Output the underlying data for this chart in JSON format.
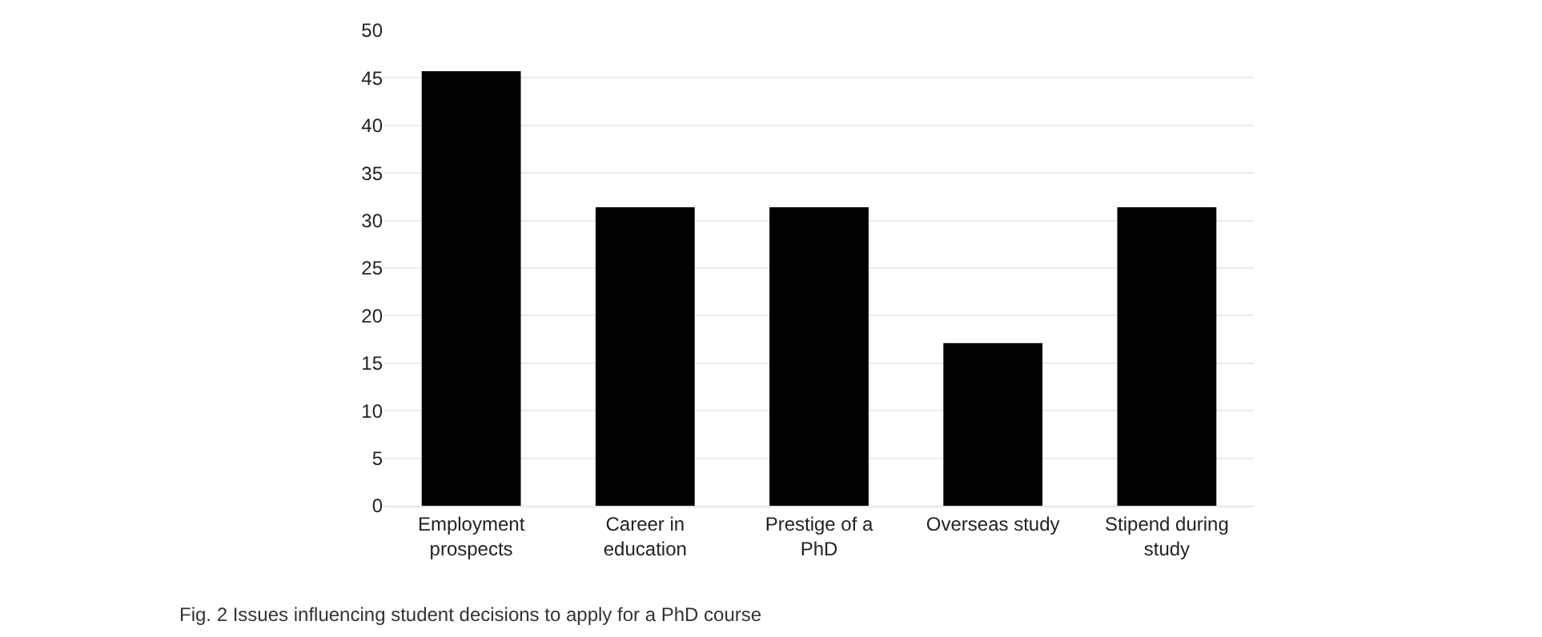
{
  "chart_data": {
    "type": "bar",
    "categories": [
      "Employment\nprospects",
      "Career in\neducation",
      "Prestige of a\nPhD",
      "Overseas study",
      "Stipend during\nstudy"
    ],
    "values": [
      45.7,
      31.4,
      31.4,
      17.1,
      31.4
    ],
    "color": "#000000",
    "ylim": [
      0,
      50
    ],
    "yticks": [
      0,
      5,
      10,
      15,
      20,
      25,
      30,
      35,
      40,
      45,
      50
    ],
    "grid": "y",
    "annotations": [
      "Fig. 2 Issues influencing student decisions to apply for a PhD course"
    ]
  }
}
